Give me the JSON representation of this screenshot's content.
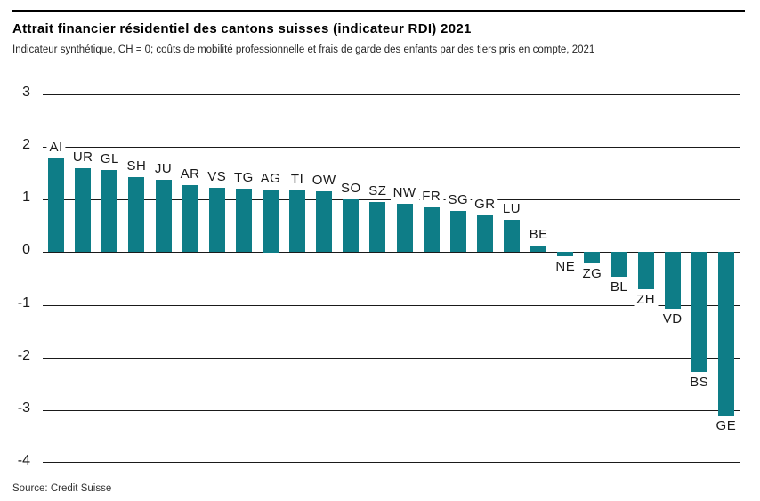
{
  "header": {
    "title": "Attrait financier résidentiel des cantons suisses (indicateur RDI) 2021",
    "subtitle": "Indicateur synthétique, CH = 0; coûts de mobilité professionnelle et frais de garde des enfants par des tiers pris en compte, 2021"
  },
  "footer": {
    "source": "Source: Credit Suisse"
  },
  "colors": {
    "bar": "#0E7D87",
    "grid": "#1a1a1a",
    "text": "#1a1a1a"
  },
  "chart_data": {
    "type": "bar",
    "title": "Attrait financier résidentiel des cantons suisses (indicateur RDI) 2021",
    "subtitle": "Indicateur synthétique, CH = 0; coûts de mobilité professionnelle et frais de garde des enfants par des tiers pris en compte, 2021",
    "source": "Source: Credit Suisse",
    "categories": [
      "AI",
      "UR",
      "GL",
      "SH",
      "JU",
      "AR",
      "VS",
      "TG",
      "AG",
      "TI",
      "OW",
      "SO",
      "SZ",
      "NW",
      "FR",
      "SG",
      "GR",
      "LU",
      "BE",
      "NE",
      "ZG",
      "BL",
      "ZH",
      "VD",
      "BS",
      "GE"
    ],
    "values": [
      1.79,
      1.6,
      1.56,
      1.42,
      1.37,
      1.28,
      1.23,
      1.21,
      1.2,
      1.18,
      1.16,
      1.01,
      0.95,
      0.92,
      0.86,
      0.78,
      0.7,
      0.61,
      0.13,
      -0.08,
      -0.22,
      -0.46,
      -0.7,
      -1.07,
      -2.28,
      -3.1
    ],
    "xlabel": "",
    "ylabel": "",
    "ylim": [
      -4,
      3
    ],
    "yticks": [
      3,
      2,
      1,
      0,
      -1,
      -2,
      -3,
      -4
    ],
    "baseline": 0,
    "grid": "horizontal",
    "legend": "none",
    "bar_color": "#0E7D87"
  }
}
